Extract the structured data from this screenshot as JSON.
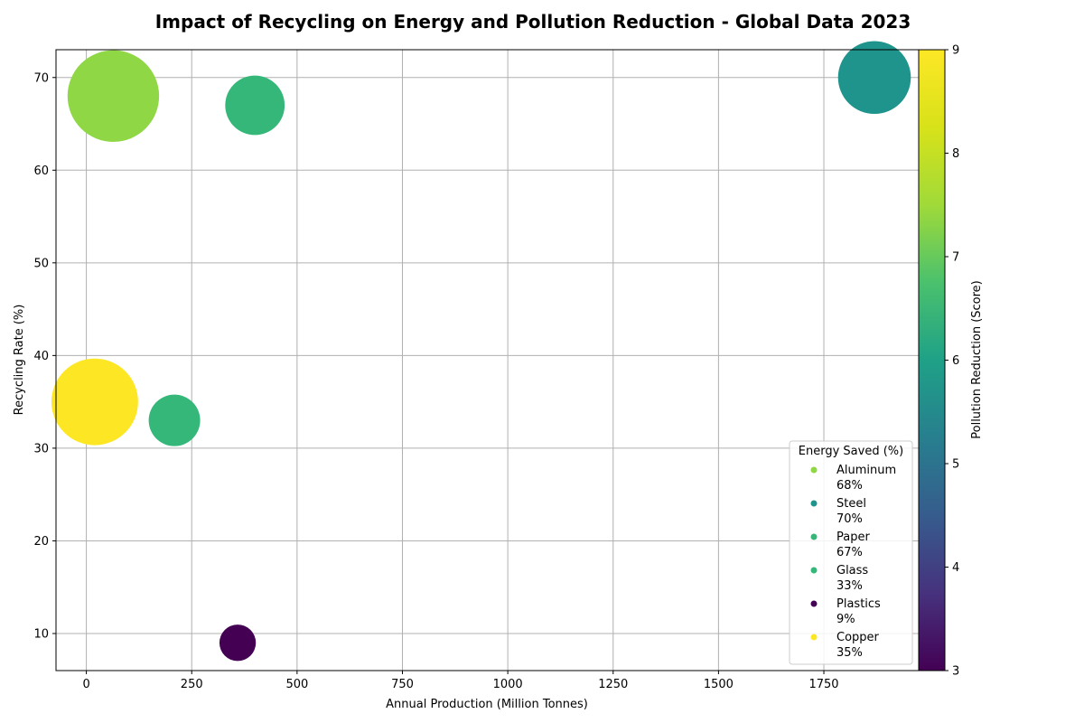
{
  "chart_data": {
    "type": "scatter",
    "title": "Impact of Recycling on Energy and Pollution Reduction - Global Data 2023",
    "xlabel": "Annual Production (Million Tonnes)",
    "ylabel": "Recycling Rate (%)",
    "xlim": [
      -72,
      1975
    ],
    "ylim": [
      6,
      73
    ],
    "xticks": [
      0,
      250,
      500,
      750,
      1000,
      1250,
      1500,
      1750
    ],
    "yticks": [
      10,
      20,
      30,
      40,
      50,
      60,
      70
    ],
    "grid": true,
    "size_encoding": "Energy Saved (%)",
    "color_encoding": "Pollution Reduction (Score)",
    "colorbar": {
      "label": "Pollution Reduction (Score)",
      "min": 3,
      "max": 9,
      "ticks": [
        3,
        4,
        5,
        6,
        7,
        8,
        9
      ]
    },
    "legend": {
      "title": "Energy Saved (%)",
      "position": "lower-right"
    },
    "points": [
      {
        "name": "Aluminum",
        "x": 64,
        "y": 68,
        "energy_saved": 95,
        "pollution": 8,
        "legend_label": "68%"
      },
      {
        "name": "Steel",
        "x": 1870,
        "y": 70,
        "energy_saved": 60,
        "pollution": 6,
        "legend_label": "70%"
      },
      {
        "name": "Paper",
        "x": 400,
        "y": 67,
        "energy_saved": 40,
        "pollution": 7,
        "legend_label": "67%"
      },
      {
        "name": "Glass",
        "x": 209,
        "y": 33,
        "energy_saved": 30,
        "pollution": 7,
        "legend_label": "33%"
      },
      {
        "name": "Plastics",
        "x": 359,
        "y": 9,
        "energy_saved": 15,
        "pollution": 3,
        "legend_label": "9%"
      },
      {
        "name": "Copper",
        "x": 20,
        "y": 35,
        "energy_saved": 85,
        "pollution": 9,
        "legend_label": "35%"
      }
    ],
    "colors": {
      "Aluminum": "#8fd744",
      "Steel": "#1f948c",
      "Paper": "#35b779",
      "Glass": "#35b779",
      "Plastics": "#440154",
      "Copper": "#fde725"
    }
  }
}
